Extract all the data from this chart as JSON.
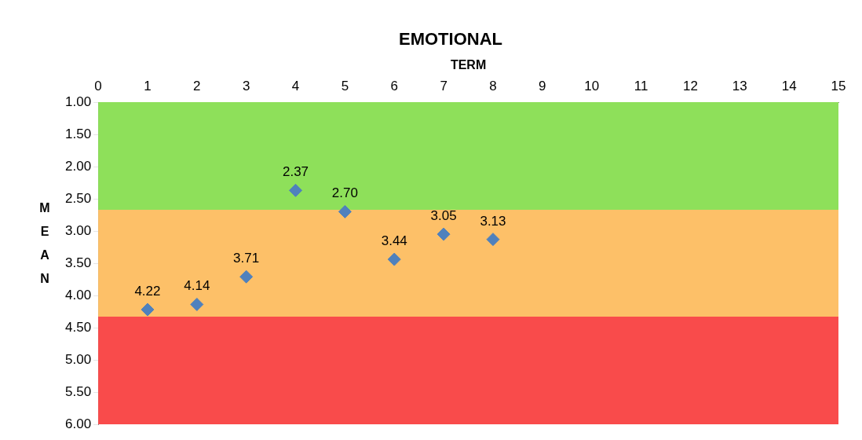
{
  "chart_data": {
    "type": "scatter",
    "title": "EMOTIONAL",
    "xlabel": "TERM",
    "ylabel": "MEAN",
    "x": [
      1,
      2,
      3,
      4,
      5,
      6,
      7,
      8
    ],
    "series": [
      {
        "color": "#4f81bd",
        "values": [
          4.22,
          4.14,
          3.71,
          2.37,
          2.7,
          3.44,
          3.05,
          3.13
        ]
      }
    ],
    "value_labels": [
      "4.22",
      "4.14",
      "3.71",
      "2.37",
      "2.70",
      "3.44",
      "3.05",
      "3.13"
    ],
    "marker": "diamond",
    "grid": false,
    "legend": false,
    "xlim": [
      0,
      15
    ],
    "xticks": [
      0,
      1,
      2,
      3,
      4,
      5,
      6,
      7,
      8,
      9,
      10,
      11,
      12,
      13,
      14,
      15
    ],
    "ylim": [
      6,
      1
    ],
    "yticks": [
      {
        "value": 1,
        "label": "1.00"
      },
      {
        "value": 1.5,
        "label": "1.50"
      },
      {
        "value": 2,
        "label": "2.00"
      },
      {
        "value": 2.5,
        "label": "2.50"
      },
      {
        "value": 3,
        "label": "3.00"
      },
      {
        "value": 3.5,
        "label": "3.50"
      },
      {
        "value": 4,
        "label": "4.00"
      },
      {
        "value": 4.5,
        "label": "4.50"
      },
      {
        "value": 5,
        "label": "5.00"
      },
      {
        "value": 5.5,
        "label": "5.50"
      },
      {
        "value": 6,
        "label": "6.00"
      }
    ],
    "bands": [
      {
        "axis": "y",
        "from": 1,
        "to": 2.67,
        "color": "#8ee05a"
      },
      {
        "axis": "y",
        "from": 2.67,
        "to": 4.33,
        "color": "#fdc068"
      },
      {
        "axis": "y",
        "from": 4.33,
        "to": 6,
        "color": "#f94b4b"
      }
    ]
  }
}
